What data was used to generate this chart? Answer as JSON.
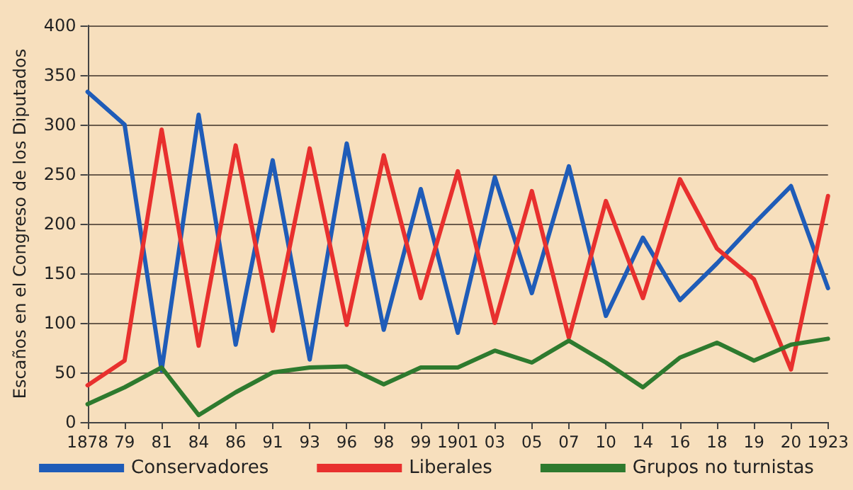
{
  "chart_data": {
    "type": "line",
    "ylabel": "Escaños en el Congreso de los Diputados",
    "categories": [
      "1878",
      "79",
      "81",
      "84",
      "86",
      "91",
      "93",
      "96",
      "98",
      "99",
      "1901",
      "03",
      "05",
      "07",
      "10",
      "14",
      "16",
      "18",
      "19",
      "20",
      "1923"
    ],
    "series": [
      {
        "name": "Conservadores",
        "color": "#1f5cb8",
        "values": [
          333,
          300,
          52,
          310,
          78,
          264,
          63,
          281,
          93,
          235,
          90,
          247,
          130,
          258,
          107,
          186,
          123,
          160,
          200,
          238,
          135
        ]
      },
      {
        "name": "Liberales",
        "color": "#e8302e",
        "values": [
          37,
          62,
          295,
          77,
          279,
          92,
          276,
          98,
          269,
          125,
          253,
          100,
          233,
          85,
          223,
          125,
          245,
          175,
          144,
          53,
          228
        ]
      },
      {
        "name": "Grupos no turnistas",
        "color": "#2e7a2e",
        "values": [
          18,
          35,
          55,
          7,
          30,
          50,
          55,
          56,
          38,
          55,
          55,
          72,
          60,
          82,
          60,
          35,
          65,
          80,
          62,
          78,
          84
        ]
      }
    ],
    "ylim": [
      0,
      400
    ],
    "yticks": [
      0,
      50,
      100,
      150,
      200,
      250,
      300,
      350,
      400
    ],
    "grid": "y",
    "legend": "bottom",
    "marker": "none",
    "line_style": "solid"
  }
}
